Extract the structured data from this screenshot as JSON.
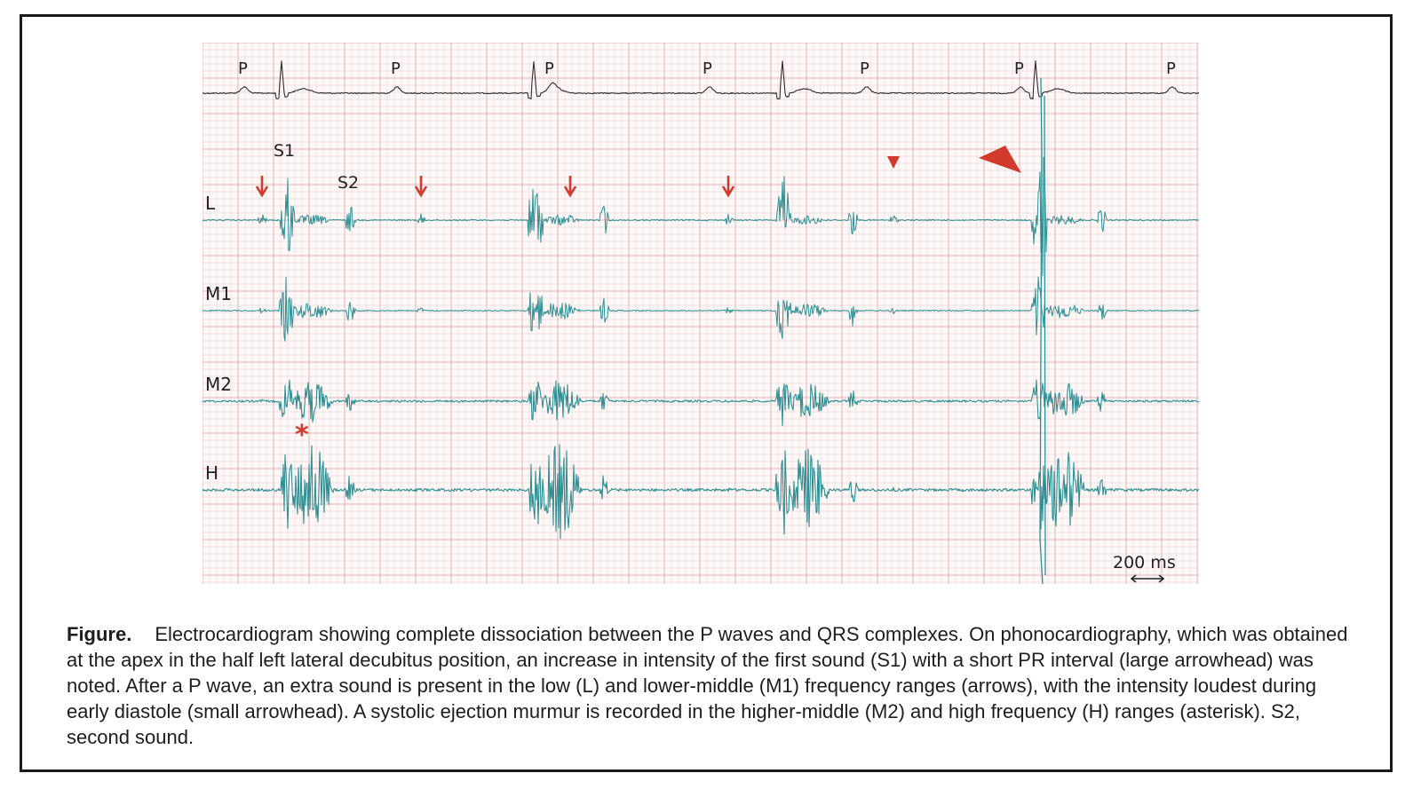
{
  "figure": {
    "panel_labels": {
      "p_wave": "P",
      "s1": "S1",
      "s2": "S2",
      "channel_L": "L",
      "channel_M1": "M1",
      "channel_M2": "M2",
      "channel_H": "H",
      "asterisk": "*",
      "scale_bar": "200 ms"
    },
    "colors": {
      "ecg_trace": "#2d2d2d",
      "phono_trace": "#2e8f93",
      "annotation_red": "#d23a2e",
      "grid_minor": "#f1d9d9",
      "grid_major": "#e4b3b3",
      "panel_bg": "#fdf8f8"
    }
  },
  "caption": {
    "label": "Figure.",
    "text": "Electrocardiogram showing complete dissociation between the P waves and QRS complexes. On phonocardiography, which was obtained at the apex in the half left lateral decubitus position, an increase in intensity of the first sound (S1) with a short PR interval (large arrowhead) was noted. After a P wave, an extra sound is present in the low (L) and lower-middle (M1) frequency ranges (arrows), with the intensity loudest during early diastole (small arrowhead). A systolic ejection murmur is recorded in the higher-middle (M2) and high frequency (H) ranges (asterisk). S2, second sound."
  }
}
